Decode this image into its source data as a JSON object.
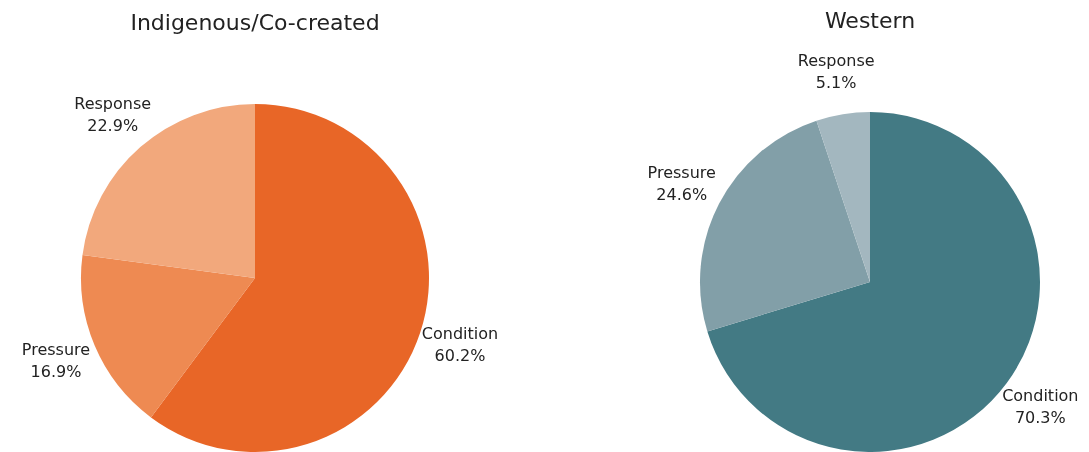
{
  "chart_data": [
    {
      "type": "pie",
      "title": "Indigenous/Co-created",
      "categories": [
        "Condition",
        "Pressure",
        "Response"
      ],
      "values": [
        60.2,
        16.9,
        22.9
      ],
      "value_labels": [
        "60.2%",
        "16.9%",
        "22.9%"
      ],
      "colors": [
        "#e86627",
        "#ee8a52",
        "#f2a87c"
      ],
      "legend": false
    },
    {
      "type": "pie",
      "title": "Western",
      "categories": [
        "Condition",
        "Pressure",
        "Response"
      ],
      "values": [
        70.3,
        24.6,
        5.1
      ],
      "value_labels": [
        "70.3%",
        "24.6%",
        "5.1%"
      ],
      "colors": [
        "#437a84",
        "#829fa8",
        "#a3b7bf"
      ],
      "legend": false
    }
  ]
}
